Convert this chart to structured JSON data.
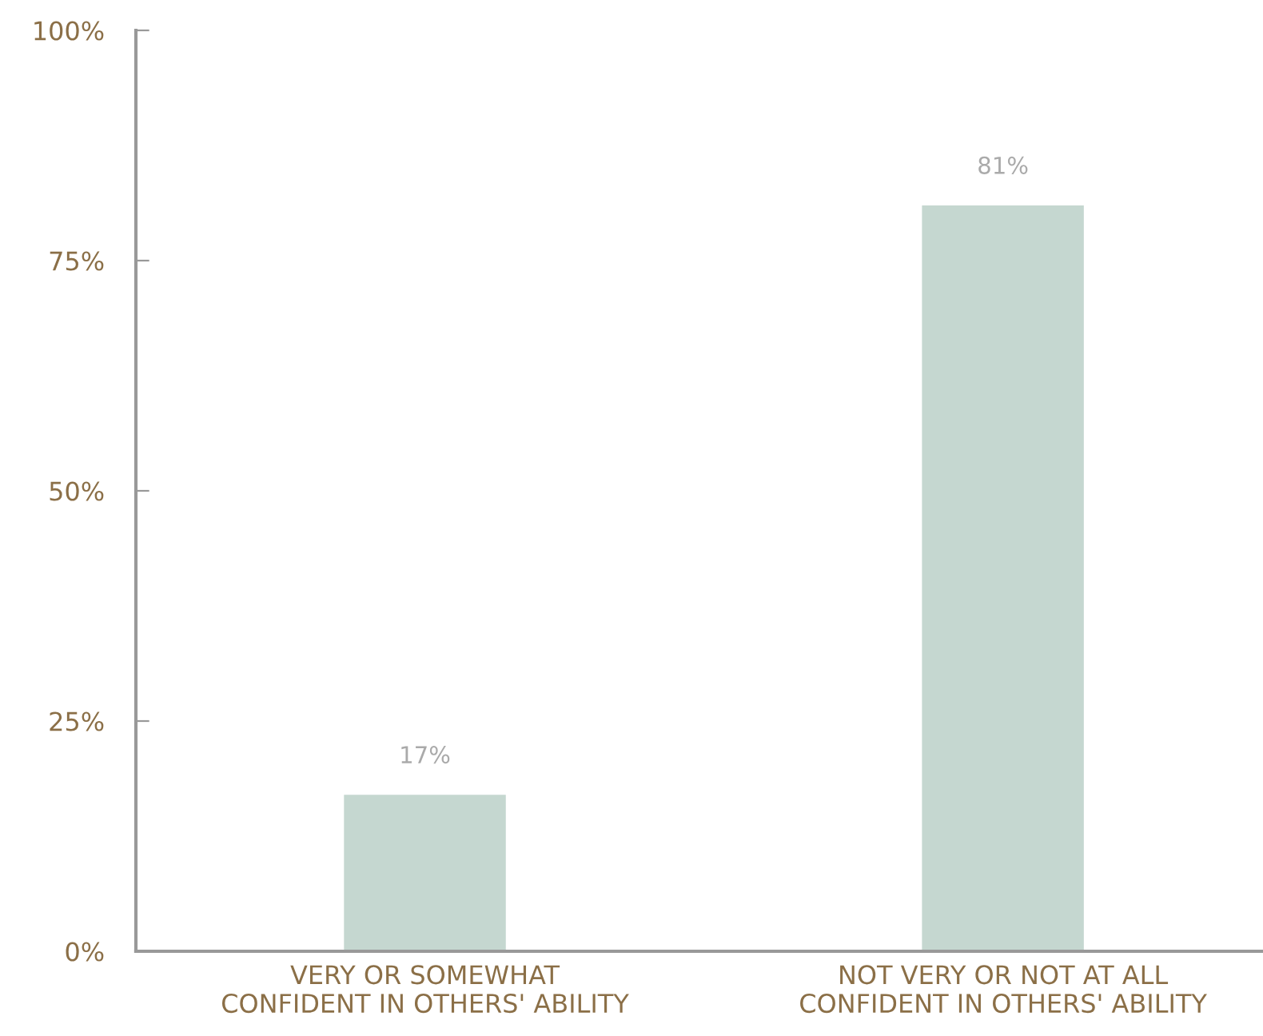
{
  "chart_data": {
    "type": "bar",
    "categories": [
      "VERY OR SOMEWHAT\nCONFIDENT IN OTHERS' ABILITY",
      "NOT VERY OR NOT AT ALL\nCONFIDENT IN OTHERS' ABILITY"
    ],
    "values": [
      17,
      81
    ],
    "value_labels": [
      "17%",
      "81%"
    ],
    "color": "#c5d7d0",
    "ylim": [
      0,
      100
    ],
    "yticks": [
      {
        "value": 0,
        "label": "0%"
      },
      {
        "value": 25,
        "label": "25%"
      },
      {
        "value": 50,
        "label": "50%"
      },
      {
        "value": 75,
        "label": "75%"
      },
      {
        "value": 100,
        "label": "100%"
      }
    ],
    "grid": false
  }
}
